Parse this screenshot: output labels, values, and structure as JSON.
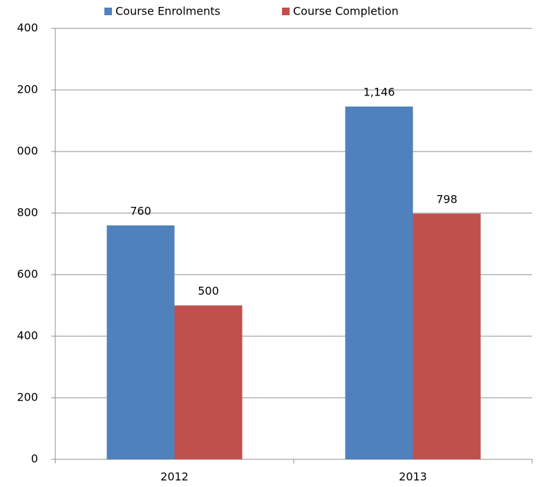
{
  "chart_data": {
    "type": "bar",
    "categories": [
      "2012",
      "2013"
    ],
    "series": [
      {
        "name": "Course Enrolments",
        "color": "#4f81bd",
        "values": [
          760,
          1146
        ],
        "value_labels": [
          "760",
          "1,146"
        ]
      },
      {
        "name": "Course Completion",
        "color": "#c0504d",
        "values": [
          500,
          798
        ],
        "value_labels": [
          "500",
          "798"
        ]
      }
    ],
    "ylim": [
      0,
      1400
    ],
    "yticks": [
      0,
      200,
      400,
      600,
      800,
      {
        "value": 1000,
        "label": "000"
      },
      {
        "value": 1200,
        "label": "200"
      },
      {
        "value": 1400,
        "label": "400"
      }
    ],
    "grid": true,
    "legend": "top"
  }
}
